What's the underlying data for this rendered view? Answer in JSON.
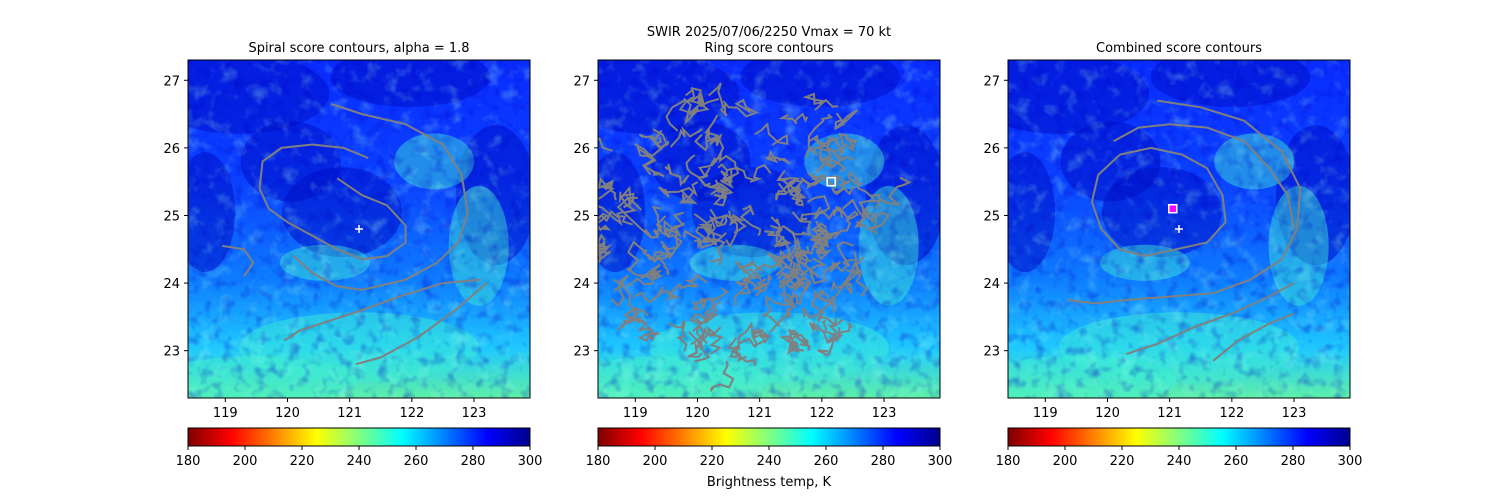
{
  "suptitle": {
    "line1": "SWIR  2025/07/06/2250    Vmax = 70 kt"
  },
  "colorbar_label": "Brightness temp, K",
  "colormap": {
    "name": "jet_r",
    "stops": [
      "#800000",
      "#ff0000",
      "#ff8000",
      "#ffff00",
      "#80ff80",
      "#00ffff",
      "#0080ff",
      "#0000ff",
      "#00008b"
    ]
  },
  "chart_data": [
    {
      "type": "heatmap",
      "title": "Spiral score contours, alpha =  1.8",
      "xlim": [
        118.4,
        123.9
      ],
      "ylim": [
        22.3,
        27.3
      ],
      "xticks": [
        "119",
        "120",
        "121",
        "122",
        "123"
      ],
      "yticks": [
        "23",
        "24",
        "25",
        "26",
        "27"
      ],
      "center_marker": {
        "symbol": "+",
        "lon": 121.15,
        "lat": 24.8
      },
      "contour_color": "#808080",
      "colorbar": {
        "min": 180,
        "max": 300,
        "ticks": [
          "180",
          "200",
          "220",
          "240",
          "260",
          "280",
          "300"
        ]
      }
    },
    {
      "type": "heatmap",
      "title": "Ring score contours",
      "xlim": [
        118.4,
        123.9
      ],
      "ylim": [
        22.3,
        27.3
      ],
      "xticks": [
        "119",
        "120",
        "121",
        "122",
        "123"
      ],
      "yticks": [
        "23",
        "24",
        "25",
        "26",
        "27"
      ],
      "ring_marker": {
        "symbol": "square",
        "lon": 122.15,
        "lat": 25.5
      },
      "contour_color": "#808080",
      "colorbar": {
        "min": 180,
        "max": 300,
        "ticks": [
          "180",
          "200",
          "220",
          "240",
          "260",
          "280",
          "300"
        ]
      }
    },
    {
      "type": "heatmap",
      "title": "Combined score contours",
      "xlim": [
        118.4,
        123.9
      ],
      "ylim": [
        22.3,
        27.3
      ],
      "xticks": [
        "119",
        "120",
        "121",
        "122",
        "123"
      ],
      "yticks": [
        "23",
        "24",
        "25",
        "26",
        "27"
      ],
      "center_marker": {
        "symbol": "+",
        "lon": 121.15,
        "lat": 24.8
      },
      "combined_marker": {
        "symbol": "square",
        "lon": 121.05,
        "lat": 25.1
      },
      "contour_color": "#808080",
      "colorbar": {
        "min": 180,
        "max": 300,
        "ticks": [
          "180",
          "200",
          "220",
          "240",
          "260",
          "280",
          "300"
        ]
      }
    }
  ]
}
